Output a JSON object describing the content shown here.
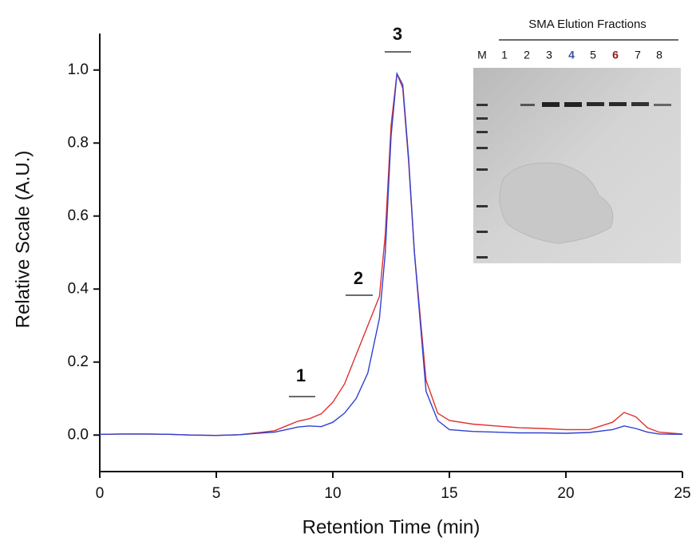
{
  "chart_data": {
    "type": "line",
    "xlabel": "Retention Time (min)",
    "ylabel": "Relative Scale (A.U.)",
    "xlim": [
      0,
      25
    ],
    "ylim": [
      -0.1,
      1.1
    ],
    "xticks": [
      0,
      5,
      10,
      15,
      20,
      25
    ],
    "yticks": [
      {
        "value": 0,
        "label": "0.0"
      },
      0.2,
      0.4,
      0.6,
      0.8,
      {
        "value": 1,
        "label": "1.0"
      }
    ],
    "x": [
      0,
      1,
      2,
      3,
      4,
      5,
      6,
      7,
      7.5,
      8,
      8.5,
      9,
      9.5,
      10,
      10.5,
      11,
      11.5,
      12,
      12.25,
      12.5,
      12.75,
      13,
      13.25,
      13.5,
      14,
      14.5,
      15,
      16,
      17,
      18,
      19,
      20,
      21,
      22,
      22.5,
      23,
      23.5,
      24,
      25
    ],
    "series": [
      {
        "color": "#e03030",
        "values": [
          0.002,
          0.003,
          0.003,
          0.002,
          0.0,
          -0.001,
          0.001,
          0.008,
          0.012,
          0.025,
          0.038,
          0.045,
          0.058,
          0.09,
          0.14,
          0.22,
          0.3,
          0.38,
          0.55,
          0.85,
          0.99,
          0.95,
          0.75,
          0.5,
          0.15,
          0.06,
          0.04,
          0.03,
          0.025,
          0.02,
          0.018,
          0.015,
          0.015,
          0.035,
          0.062,
          0.05,
          0.02,
          0.008,
          0.003
        ]
      },
      {
        "color": "#3040d0",
        "values": [
          0.002,
          0.003,
          0.003,
          0.002,
          0.0,
          -0.001,
          0.001,
          0.006,
          0.008,
          0.015,
          0.022,
          0.025,
          0.023,
          0.035,
          0.06,
          0.1,
          0.17,
          0.32,
          0.5,
          0.82,
          0.99,
          0.96,
          0.76,
          0.5,
          0.12,
          0.04,
          0.015,
          0.01,
          0.008,
          0.006,
          0.006,
          0.005,
          0.007,
          0.015,
          0.025,
          0.018,
          0.008,
          0.003,
          0.002
        ]
      }
    ],
    "annotations": [
      "1",
      "2",
      "3"
    ]
  },
  "inset": {
    "title": "SMA Elution Fractions",
    "lanes": [
      "M",
      "1",
      "2",
      "3",
      "4",
      "5",
      "6",
      "7",
      "8"
    ]
  }
}
